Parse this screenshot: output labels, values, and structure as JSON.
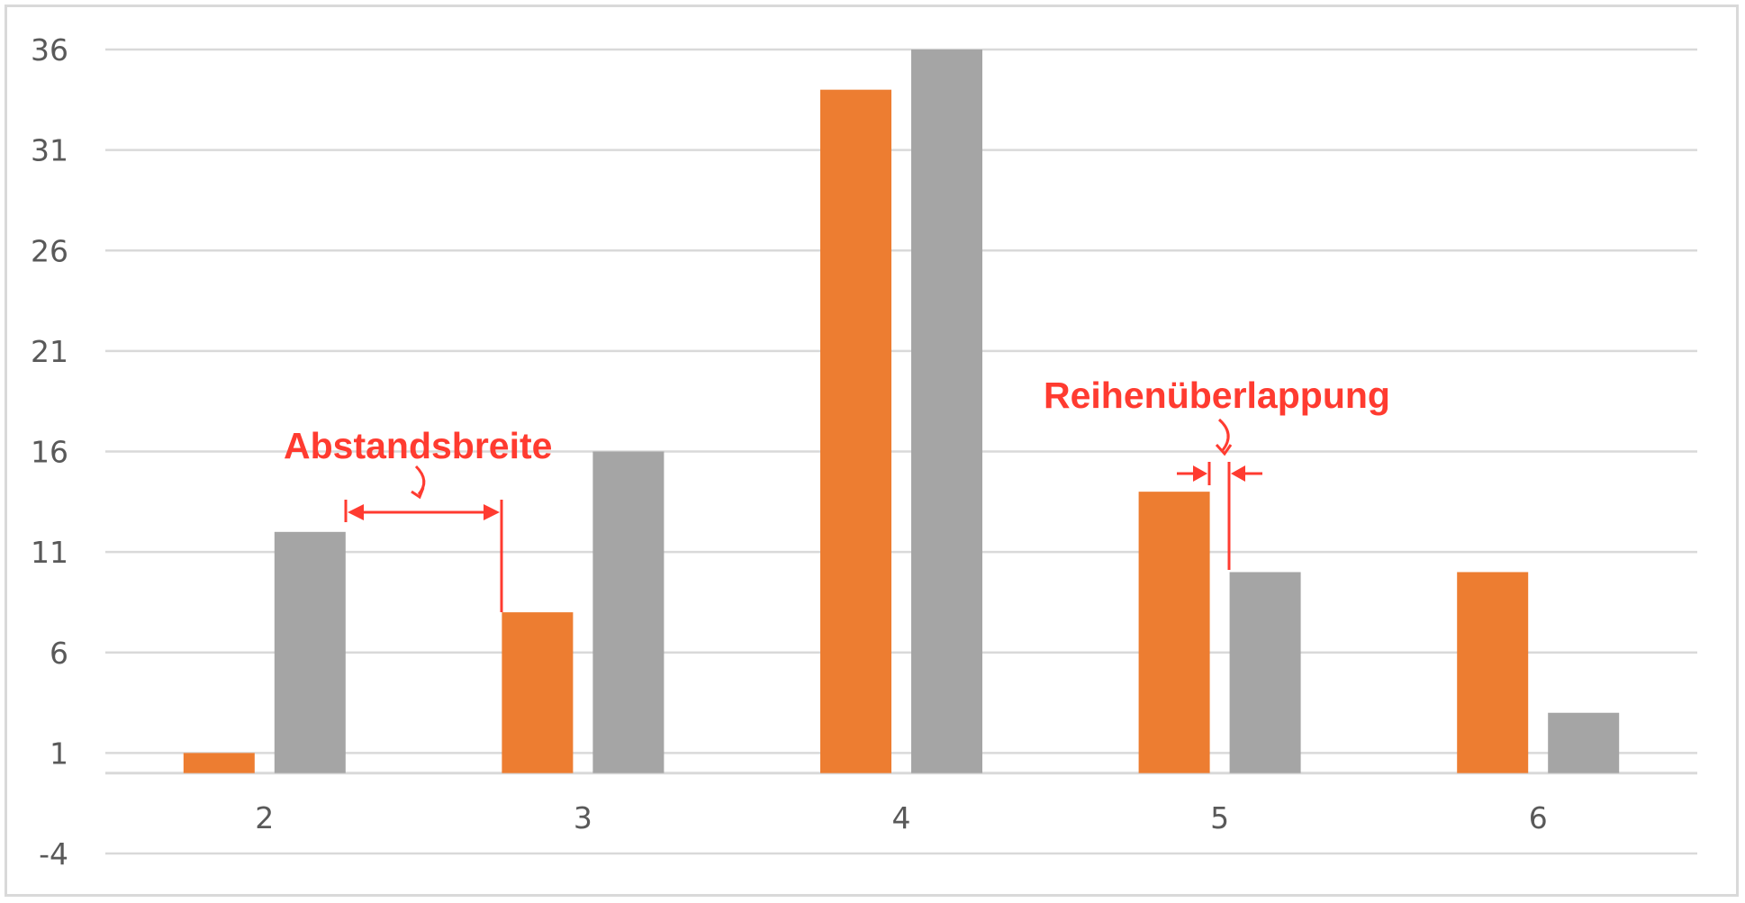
{
  "chart_data": {
    "type": "bar",
    "categories": [
      "2",
      "3",
      "4",
      "5",
      "6"
    ],
    "series": [
      {
        "values": [
          1,
          8,
          34,
          14,
          10
        ],
        "color": "#ed7d31"
      },
      {
        "values": [
          12,
          16,
          36,
          10,
          3
        ],
        "color": "#a5a5a5"
      }
    ],
    "y_ticks": [
      -4,
      1,
      6,
      11,
      16,
      21,
      26,
      31,
      36
    ],
    "ylim": [
      -4,
      36
    ],
    "baseline": 0,
    "grid": true,
    "legend": "none",
    "annotations": [
      {
        "text": "Abstandsbreite",
        "color": "#ff3b30"
      },
      {
        "text": "Reihenüberlappung",
        "color": "#ff3b30"
      }
    ]
  }
}
